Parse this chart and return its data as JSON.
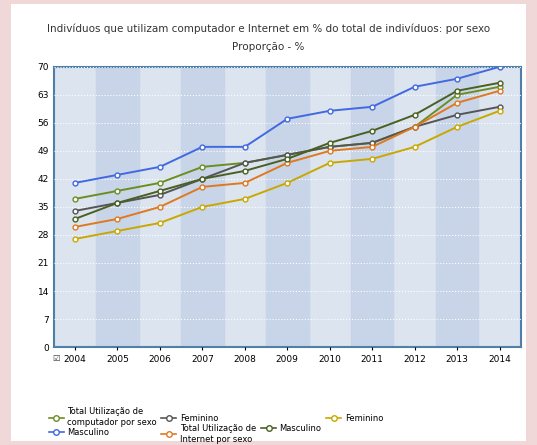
{
  "title": "Indivíduos que utilizam computador e Internet em % do total de indivíduos: por sexo",
  "ylabel": "Proporção - %",
  "years": [
    2004,
    2005,
    2006,
    2007,
    2008,
    2009,
    2010,
    2011,
    2012,
    2013,
    2014
  ],
  "series_order": [
    "masculino_computador",
    "total_computador",
    "feminino_computador",
    "total_internet",
    "masculino_internet",
    "feminino_internet"
  ],
  "series": {
    "total_computador": {
      "label": "Total Utilização de computador por sexo",
      "color": "#6b8e23",
      "marker": "o",
      "markersize": 3.5,
      "linewidth": 1.4,
      "values": [
        37,
        39,
        41,
        45,
        46,
        48,
        50,
        51,
        55,
        63,
        65
      ]
    },
    "masculino_computador": {
      "label": "Masculino",
      "color": "#4169e1",
      "marker": "o",
      "markersize": 3.5,
      "linewidth": 1.4,
      "values": [
        41,
        43,
        45,
        50,
        50,
        57,
        59,
        60,
        65,
        67,
        70
      ]
    },
    "feminino_computador": {
      "label": "Feminino",
      "color": "#555555",
      "marker": "o",
      "markersize": 3.5,
      "linewidth": 1.4,
      "values": [
        34,
        36,
        38,
        42,
        46,
        48,
        50,
        51,
        55,
        58,
        60
      ]
    },
    "total_internet": {
      "label": "Total Utilização de Internet por sexo",
      "color": "#e07820",
      "marker": "o",
      "markersize": 3.5,
      "linewidth": 1.4,
      "values": [
        30,
        32,
        35,
        40,
        41,
        46,
        49,
        50,
        55,
        61,
        64
      ]
    },
    "masculino_internet": {
      "label": "Masculino",
      "color": "#4a6020",
      "marker": "o",
      "markersize": 3.5,
      "linewidth": 1.4,
      "values": [
        32,
        36,
        39,
        42,
        44,
        47,
        51,
        54,
        58,
        64,
        66
      ]
    },
    "feminino_internet": {
      "label": "Feminino",
      "color": "#c8a800",
      "marker": "o",
      "markersize": 3.5,
      "linewidth": 1.4,
      "values": [
        27,
        29,
        31,
        35,
        37,
        41,
        46,
        47,
        50,
        55,
        59
      ]
    }
  },
  "ylim": [
    0,
    70
  ],
  "yticks": [
    0,
    7,
    14,
    21,
    28,
    35,
    42,
    49,
    56,
    63,
    70
  ],
  "outer_bg_color": "#f0d8d8",
  "fig_bg_color": "#ffffff",
  "plot_bg_color": "#dce4ef",
  "stripe_color": "#c8d4e8",
  "border_color": "#4d7fa8",
  "grid_color": "#ffffff",
  "title_fontsize": 7.5,
  "axis_label_fontsize": 7.5
}
